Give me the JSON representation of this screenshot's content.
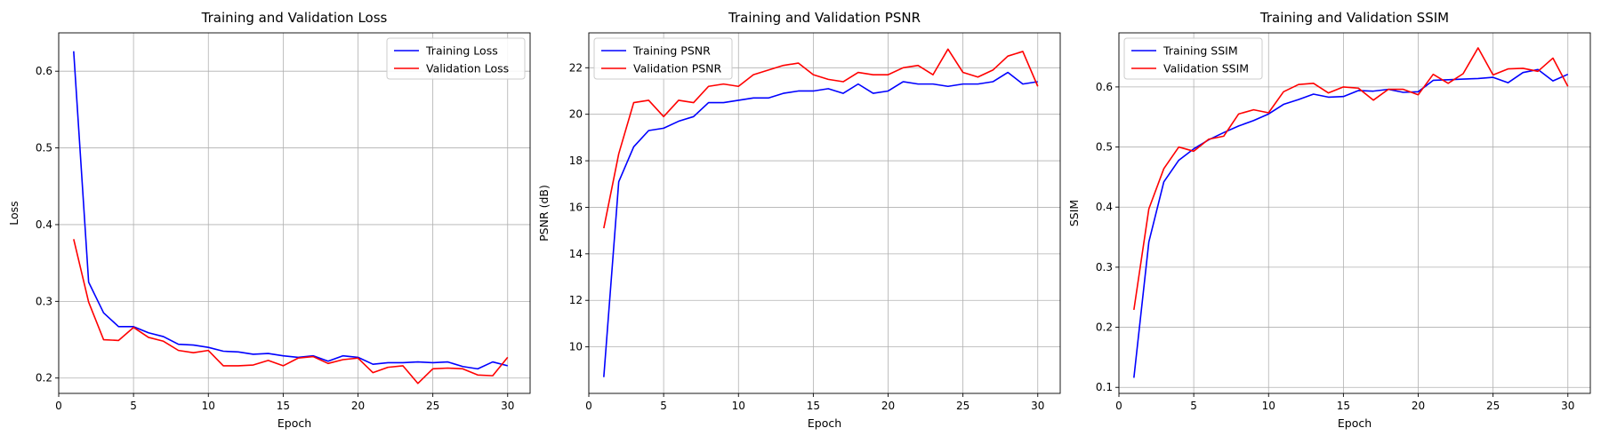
{
  "chart_data": [
    {
      "type": "line",
      "title": "Training and Validation Loss",
      "xlabel": "Epoch",
      "ylabel": "Loss",
      "xlim": [
        0,
        31.5
      ],
      "ylim": [
        0.18,
        0.65
      ],
      "xticks": [
        0,
        5,
        10,
        15,
        20,
        25,
        30
      ],
      "yticks": [
        0.2,
        0.3,
        0.4,
        0.5,
        0.6
      ],
      "xtick_labels": [
        "0",
        "5",
        "10",
        "15",
        "20",
        "25",
        "30"
      ],
      "ytick_labels": [
        "0.2",
        "0.3",
        "0.4",
        "0.5",
        "0.6"
      ],
      "grid": true,
      "legend_position": "top-right",
      "x": [
        1,
        2,
        3,
        4,
        5,
        6,
        7,
        8,
        9,
        10,
        11,
        12,
        13,
        14,
        15,
        16,
        17,
        18,
        19,
        20,
        21,
        22,
        23,
        24,
        25,
        26,
        27,
        28,
        29,
        30
      ],
      "series": [
        {
          "name": "Training Loss",
          "color": "#0000ff",
          "values": [
            0.626,
            0.325,
            0.285,
            0.267,
            0.267,
            0.259,
            0.254,
            0.244,
            0.243,
            0.24,
            0.235,
            0.234,
            0.231,
            0.232,
            0.229,
            0.227,
            0.229,
            0.222,
            0.229,
            0.227,
            0.218,
            0.22,
            0.22,
            0.221,
            0.22,
            0.221,
            0.215,
            0.212,
            0.221,
            0.216
          ]
        },
        {
          "name": "Validation Loss",
          "color": "#ff0000",
          "values": [
            0.381,
            0.299,
            0.25,
            0.249,
            0.266,
            0.253,
            0.248,
            0.236,
            0.233,
            0.236,
            0.216,
            0.216,
            0.217,
            0.223,
            0.216,
            0.226,
            0.228,
            0.219,
            0.224,
            0.226,
            0.207,
            0.214,
            0.216,
            0.193,
            0.212,
            0.213,
            0.212,
            0.204,
            0.203,
            0.227
          ]
        }
      ]
    },
    {
      "type": "line",
      "title": "Training and Validation PSNR",
      "xlabel": "Epoch",
      "ylabel": "PSNR (dB)",
      "xlim": [
        0,
        31.5
      ],
      "ylim": [
        8.0,
        23.5
      ],
      "xticks": [
        0,
        5,
        10,
        15,
        20,
        25,
        30
      ],
      "yticks": [
        10,
        12,
        14,
        16,
        18,
        20,
        22
      ],
      "xtick_labels": [
        "0",
        "5",
        "10",
        "15",
        "20",
        "25",
        "30"
      ],
      "ytick_labels": [
        "10",
        "12",
        "14",
        "16",
        "18",
        "20",
        "22"
      ],
      "grid": true,
      "legend_position": "top-left",
      "x": [
        1,
        2,
        3,
        4,
        5,
        6,
        7,
        8,
        9,
        10,
        11,
        12,
        13,
        14,
        15,
        16,
        17,
        18,
        19,
        20,
        21,
        22,
        23,
        24,
        25,
        26,
        27,
        28,
        29,
        30
      ],
      "series": [
        {
          "name": "Training PSNR",
          "color": "#0000ff",
          "values": [
            8.7,
            17.1,
            18.6,
            19.3,
            19.4,
            19.7,
            19.9,
            20.5,
            20.5,
            20.6,
            20.7,
            20.7,
            20.9,
            21.0,
            21.0,
            21.1,
            20.9,
            21.3,
            20.9,
            21.0,
            21.4,
            21.3,
            21.3,
            21.2,
            21.3,
            21.3,
            21.4,
            21.8,
            21.3,
            21.4
          ]
        },
        {
          "name": "Validation PSNR",
          "color": "#ff0000",
          "values": [
            15.1,
            18.3,
            20.5,
            20.6,
            19.9,
            20.6,
            20.5,
            21.2,
            21.3,
            21.2,
            21.7,
            21.9,
            22.1,
            22.2,
            21.7,
            21.5,
            21.4,
            21.8,
            21.7,
            21.7,
            22.0,
            22.1,
            21.7,
            22.8,
            21.8,
            21.6,
            21.9,
            22.5,
            22.7,
            21.2
          ]
        }
      ]
    },
    {
      "type": "line",
      "title": "Training and Validation SSIM",
      "xlabel": "Epoch",
      "ylabel": "SSIM",
      "xlim": [
        0,
        31.5
      ],
      "ylim": [
        0.09,
        0.69
      ],
      "xticks": [
        0,
        5,
        10,
        15,
        20,
        25,
        30
      ],
      "yticks": [
        0.1,
        0.2,
        0.3,
        0.4,
        0.5,
        0.6
      ],
      "xtick_labels": [
        "0",
        "5",
        "10",
        "15",
        "20",
        "25",
        "30"
      ],
      "ytick_labels": [
        "0.1",
        "0.2",
        "0.3",
        "0.4",
        "0.5",
        "0.6"
      ],
      "grid": true,
      "legend_position": "top-left",
      "x": [
        1,
        2,
        3,
        4,
        5,
        6,
        7,
        8,
        9,
        10,
        11,
        12,
        13,
        14,
        15,
        16,
        17,
        18,
        19,
        20,
        21,
        22,
        23,
        24,
        25,
        26,
        27,
        28,
        29,
        30
      ],
      "series": [
        {
          "name": "Training SSIM",
          "color": "#0000ff",
          "values": [
            0.116,
            0.342,
            0.442,
            0.478,
            0.497,
            0.512,
            0.524,
            0.535,
            0.544,
            0.555,
            0.571,
            0.579,
            0.588,
            0.583,
            0.584,
            0.594,
            0.593,
            0.596,
            0.591,
            0.592,
            0.611,
            0.612,
            0.613,
            0.614,
            0.616,
            0.607,
            0.624,
            0.629,
            0.61,
            0.621
          ]
        },
        {
          "name": "Validation SSIM",
          "color": "#ff0000",
          "values": [
            0.229,
            0.397,
            0.464,
            0.5,
            0.493,
            0.513,
            0.518,
            0.555,
            0.562,
            0.557,
            0.592,
            0.604,
            0.606,
            0.59,
            0.6,
            0.598,
            0.578,
            0.596,
            0.596,
            0.587,
            0.621,
            0.606,
            0.622,
            0.665,
            0.62,
            0.63,
            0.631,
            0.626,
            0.648,
            0.601
          ]
        }
      ]
    }
  ]
}
